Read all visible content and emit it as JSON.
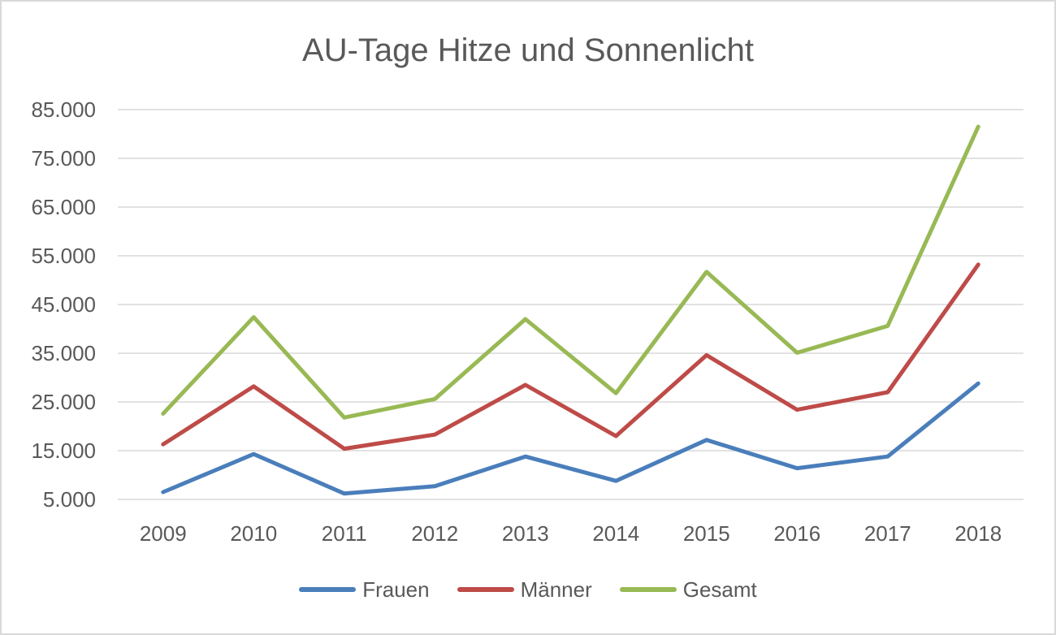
{
  "chart_data": {
    "type": "line",
    "title": "AU-Tage Hitze und Sonnenlicht",
    "xlabel": "",
    "ylabel": "",
    "categories": [
      "2009",
      "2010",
      "2011",
      "2012",
      "2013",
      "2014",
      "2015",
      "2016",
      "2017",
      "2018"
    ],
    "ylim": [
      5000,
      85000
    ],
    "yticks": [
      5000,
      15000,
      25000,
      35000,
      45000,
      55000,
      65000,
      75000,
      85000
    ],
    "ytick_labels": [
      "5.000",
      "15.000",
      "25.000",
      "35.000",
      "45.000",
      "55.000",
      "65.000",
      "75.000",
      "85.000"
    ],
    "grid": true,
    "legend_position": "bottom",
    "series": [
      {
        "name": "Frauen",
        "color": "#4a7ebb",
        "values": [
          6500,
          14300,
          6200,
          7700,
          13800,
          8800,
          17200,
          11400,
          13800,
          28800
        ]
      },
      {
        "name": "Männer",
        "color": "#be4b48",
        "values": [
          16300,
          28200,
          15400,
          18300,
          28500,
          18000,
          34600,
          23400,
          27000,
          53200
        ]
      },
      {
        "name": "Gesamt",
        "color": "#98b954",
        "values": [
          22600,
          42400,
          21800,
          25600,
          42000,
          26800,
          51700,
          35100,
          40600,
          81500
        ]
      }
    ]
  }
}
